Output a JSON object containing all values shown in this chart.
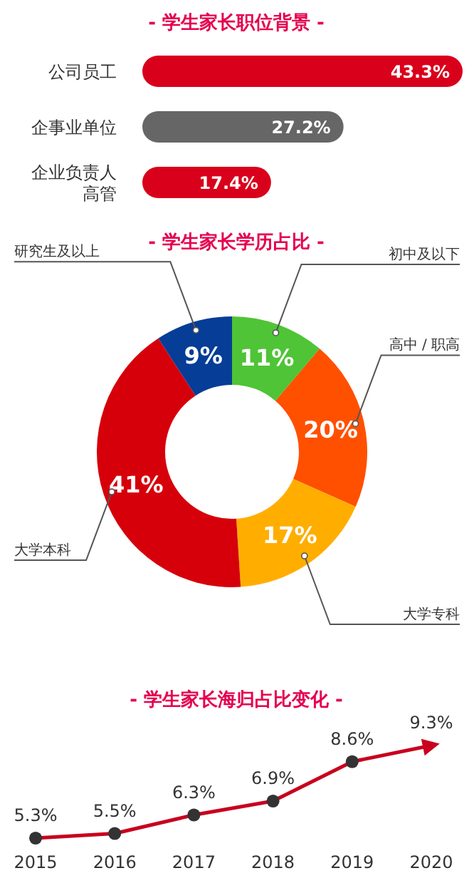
{
  "chart_data": [
    {
      "type": "bar",
      "orientation": "horizontal",
      "title": "- 学生家长职位背景 -",
      "categories": [
        "公司员工",
        "企事业单位",
        "企业负责人高管"
      ],
      "values": [
        43.3,
        27.2,
        17.4
      ],
      "colors": [
        "#d9001b",
        "#666666",
        "#d9001b"
      ],
      "value_labels": [
        "43.3%",
        "27.2%",
        "17.4%"
      ]
    },
    {
      "type": "donut",
      "title": "- 学生家长学历占比 -",
      "categories": [
        "初中及以下",
        "高中 / 职高",
        "大学专科",
        "大学本科",
        "研究生及以上"
      ],
      "values": [
        11,
        20,
        17,
        41,
        9
      ],
      "colors": [
        "#4fc436",
        "#ff5000",
        "#ffae00",
        "#d6000b",
        "#063d96"
      ],
      "value_labels": [
        "11%",
        "20%",
        "17%",
        "41%",
        "9%"
      ]
    },
    {
      "type": "line",
      "title": "- 学生家长海归占比变化 -",
      "categories": [
        "2015",
        "2016",
        "2017",
        "2018",
        "2019",
        "2020"
      ],
      "series": [
        {
          "color": "#c8001e",
          "values": [
            5.3,
            5.5,
            6.3,
            6.9,
            8.6,
            9.3
          ],
          "value_labels": [
            "5.3%",
            "5.5%",
            "6.3%",
            "6.9%",
            "8.6%",
            "9.3%"
          ]
        }
      ],
      "marker": "circle"
    }
  ]
}
